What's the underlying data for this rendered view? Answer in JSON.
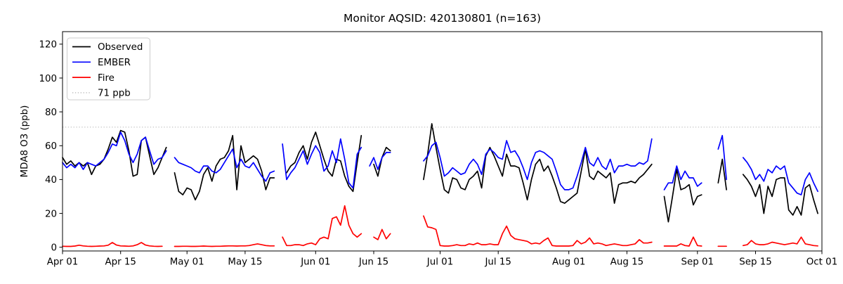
{
  "figure": {
    "title": "Monitor AQSID: 420130801 (n=163)",
    "ylabel": "MDA8 O3 (ppb)"
  },
  "chart_data": {
    "type": "line",
    "title": "Monitor AQSID: 420130801 (n=163)",
    "xlabel": "",
    "ylabel": "MDA8 O3 (ppb)",
    "grid": false,
    "x_axis": {
      "unit": "day_index_from_Apr01",
      "days_total": 183,
      "tick_days": [
        0,
        14,
        30,
        44,
        61,
        75,
        91,
        105,
        122,
        136,
        153,
        167,
        183
      ],
      "tick_labels": [
        "Apr 01",
        "Apr 15",
        "May 01",
        "May 15",
        "Jun 01",
        "Jun 15",
        "Jul 01",
        "Jul 15",
        "Aug 01",
        "Aug 15",
        "Sep 01",
        "Sep 15",
        "Oct 01"
      ]
    },
    "y_axis": {
      "ticks": [
        0,
        20,
        40,
        60,
        80,
        100,
        120
      ],
      "lim": [
        -2.2,
        127.4
      ]
    },
    "threshold": {
      "label": "71 ppb",
      "value": 71,
      "color": "#c8c8c8",
      "style": "dotted"
    },
    "legend": {
      "position": "upper left",
      "entries": [
        {
          "label": "Observed",
          "color": "#000000",
          "dash": null
        },
        {
          "label": "EMBER",
          "color": "#0000ff",
          "dash": null
        },
        {
          "label": "Fire",
          "color": "#ff0000",
          "dash": null
        },
        {
          "label": "71 ppb",
          "color": "#c8c8c8",
          "dash": "1.3 2.6"
        }
      ]
    },
    "series": [
      {
        "name": "Observed",
        "color": "#000000",
        "segments": [
          {
            "start_day": 0,
            "values": [
              53,
              49,
              51,
              48,
              50,
              48,
              50,
              43,
              48,
              49,
              52,
              58,
              65,
              62,
              69,
              68,
              57,
              42,
              43,
              63,
              65,
              54,
              43,
              47,
              53,
              59
            ]
          },
          {
            "start_day": 27,
            "values": [
              44,
              33,
              31,
              35,
              34,
              28,
              33,
              43,
              47,
              39,
              48,
              52,
              53,
              57,
              66,
              34,
              60,
              50,
              52,
              54,
              52,
              45,
              34,
              41,
              41
            ]
          },
          {
            "start_day": 54,
            "values": [
              44,
              48,
              50,
              56,
              60,
              52,
              62,
              68,
              60,
              52,
              45,
              42,
              52,
              51,
              42,
              36,
              33,
              50,
              66
            ]
          },
          {
            "start_day": 75,
            "values": [
              49,
              42,
              53,
              59,
              57
            ]
          },
          {
            "start_day": 87,
            "values": [
              40,
              55,
              73,
              59,
              46,
              34,
              32,
              41,
              40,
              35,
              34,
              40,
              42,
              45,
              35,
              54,
              59,
              54,
              48,
              42,
              55,
              48,
              48,
              47,
              38,
              28,
              40,
              49,
              52,
              45,
              48,
              42,
              35,
              27,
              26,
              28,
              30,
              32,
              45,
              58,
              42,
              40,
              45,
              43,
              41,
              44,
              26,
              37,
              38,
              38,
              39,
              38,
              41,
              43,
              46,
              49
            ]
          },
          {
            "start_day": 145,
            "values": [
              30,
              15,
              30,
              46,
              34,
              35,
              37,
              25,
              30,
              31
            ]
          },
          {
            "start_day": 158,
            "values": [
              38,
              52,
              34
            ]
          },
          {
            "start_day": 164,
            "values": [
              43,
              40,
              36,
              30,
              37,
              20,
              36,
              30,
              40,
              41,
              41,
              22,
              19,
              24,
              19,
              35,
              37,
              28,
              20
            ]
          }
        ]
      },
      {
        "name": "EMBER",
        "color": "#0000ff",
        "segments": [
          {
            "start_day": 0,
            "values": [
              50,
              47,
              49,
              47,
              50,
              46,
              50,
              49,
              48,
              50,
              52,
              56,
              61,
              60,
              68,
              63,
              55,
              50,
              55,
              63,
              65,
              57,
              49,
              52,
              53,
              57
            ]
          },
          {
            "start_day": 27,
            "values": [
              53,
              50,
              49,
              48,
              47,
              45,
              44,
              48,
              48,
              45,
              44,
              46,
              50,
              54,
              58,
              47,
              52,
              48,
              47,
              50,
              46,
              42,
              39,
              44,
              45
            ]
          },
          {
            "start_day": 53,
            "values": [
              61,
              40,
              44,
              47,
              52,
              57,
              49,
              55,
              60,
              56,
              45,
              48,
              57,
              50,
              64,
              52,
              38,
              35,
              55,
              59
            ]
          },
          {
            "start_day": 74,
            "values": [
              48,
              53,
              46,
              53,
              56,
              56
            ]
          },
          {
            "start_day": 87,
            "values": [
              51,
              54,
              60,
              62,
              53,
              42,
              44,
              47,
              45,
              43,
              44,
              49,
              52,
              49,
              43,
              55,
              58,
              56,
              53,
              52,
              63,
              56,
              57,
              53,
              47,
              40,
              50,
              56,
              57,
              56,
              54,
              52,
              45,
              37,
              34,
              34,
              35,
              42,
              50,
              59,
              50,
              48,
              53,
              48,
              46,
              52,
              44,
              48,
              48,
              49,
              48,
              48,
              50,
              49,
              51,
              64
            ]
          },
          {
            "start_day": 145,
            "values": [
              34,
              38,
              38,
              48,
              40,
              45,
              41,
              41,
              36,
              38
            ]
          },
          {
            "start_day": 158,
            "values": [
              58,
              66,
              40
            ]
          },
          {
            "start_day": 164,
            "values": [
              53,
              50,
              46,
              40,
              43,
              39,
              46,
              44,
              48,
              46,
              48,
              38,
              35,
              32,
              31,
              40,
              44,
              38,
              33
            ]
          }
        ]
      },
      {
        "name": "Fire",
        "color": "#ff0000",
        "segments": [
          {
            "start_day": 0,
            "values": [
              0.6,
              0.5,
              0.5,
              0.7,
              1.2,
              0.8,
              0.6,
              0.5,
              0.6,
              0.7,
              0.8,
              1.2,
              2.8,
              1.3,
              0.8,
              0.7,
              0.6,
              0.8,
              1.5,
              2.8,
              1.3,
              0.8,
              0.6,
              0.5,
              0.6
            ]
          },
          {
            "start_day": 27,
            "values": [
              0.5,
              0.5,
              0.6,
              0.6,
              0.5,
              0.5,
              0.6,
              0.7,
              0.6,
              0.5,
              0.6,
              0.6,
              0.7,
              0.8,
              0.8,
              0.7,
              0.8,
              0.8,
              1.0,
              1.5,
              2.0,
              1.5,
              1.0,
              0.8,
              0.8
            ]
          },
          {
            "start_day": 53,
            "values": [
              6,
              1,
              1,
              1.5,
              1.5,
              1,
              2,
              2.5,
              1.5,
              5,
              6,
              5,
              17,
              18,
              13,
              24.5,
              13,
              8,
              6,
              8
            ]
          },
          {
            "start_day": 75,
            "values": [
              6,
              4.5,
              10.5,
              5,
              8
            ]
          },
          {
            "start_day": 87,
            "values": [
              18.5,
              12,
              11.5,
              10.5,
              1,
              0.7,
              0.7,
              1,
              1.5,
              1,
              1,
              2,
              1.5,
              2.5,
              1.5,
              1.5,
              2,
              1.5,
              1.5,
              8,
              12.5,
              7,
              5,
              4.5,
              4,
              3.5,
              2,
              2.5,
              2,
              4,
              5.5,
              1,
              0.7,
              0.7,
              0.7,
              0.7,
              1,
              4,
              2,
              3,
              5.5,
              2,
              2.5,
              2,
              1,
              1.5,
              2,
              1.5,
              1,
              1,
              1.5,
              2,
              4.5,
              2.5,
              2.5,
              3
            ]
          },
          {
            "start_day": 145,
            "values": [
              0.7,
              0.7,
              0.7,
              0.7,
              2,
              1,
              0.7,
              6,
              1,
              0.7
            ]
          },
          {
            "start_day": 158,
            "values": [
              0.6,
              0.6,
              0.6
            ]
          },
          {
            "start_day": 164,
            "values": [
              1,
              1.5,
              4,
              2,
              1.5,
              1.5,
              2,
              3,
              2.5,
              2,
              1.5,
              2,
              2.5,
              2,
              6,
              2,
              1.5,
              1,
              0.8
            ]
          }
        ]
      }
    ]
  }
}
